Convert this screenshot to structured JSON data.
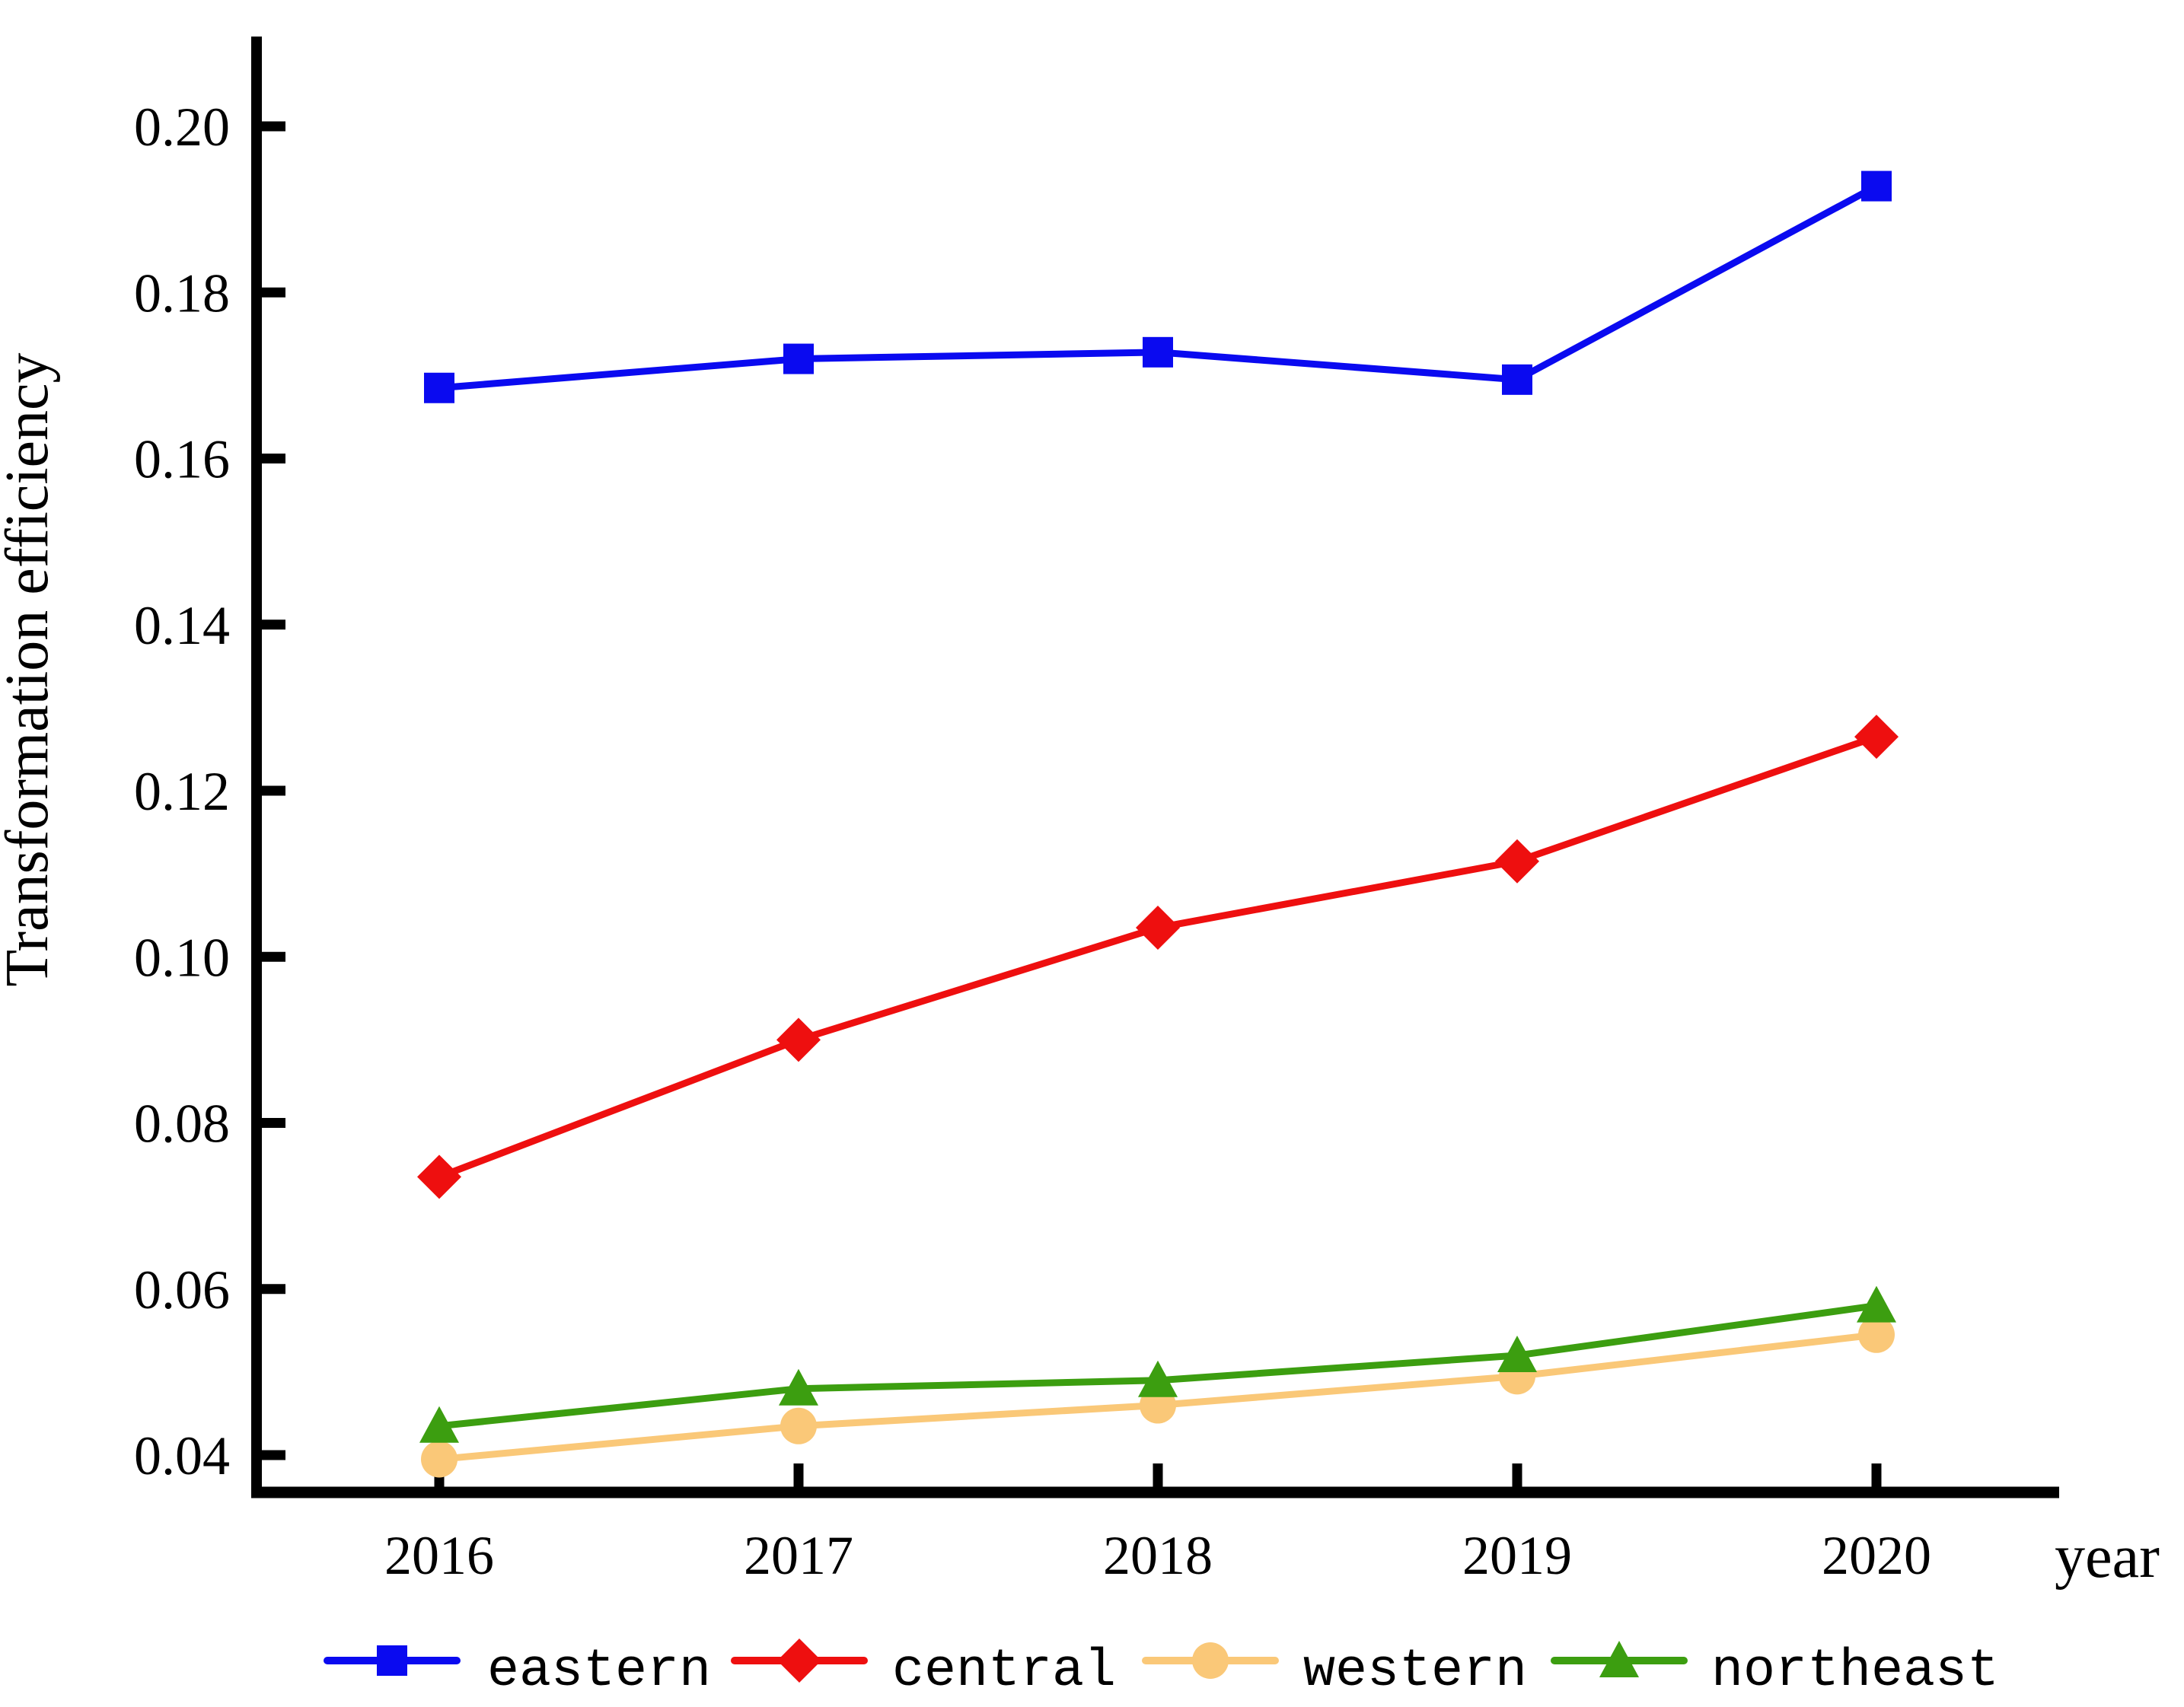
{
  "chart_data": {
    "type": "line",
    "title": "",
    "xlabel": "year",
    "ylabel": "Transformation efficiency",
    "categories": [
      "2016",
      "2017",
      "2018",
      "2019",
      "2020"
    ],
    "x_numeric": [
      2016,
      2017,
      2018,
      2019,
      2020
    ],
    "yticks": [
      0.04,
      0.06,
      0.08,
      0.1,
      0.12,
      0.14,
      0.16,
      0.18,
      0.2
    ],
    "ylim": [
      0.035,
      0.211
    ],
    "grid": false,
    "legend_position": "bottom",
    "axis_color": "#000000",
    "series": [
      {
        "name": "eastern",
        "color": "#0a0af0",
        "marker": "square",
        "values": [
          0.1685,
          0.172,
          0.1728,
          0.1695,
          0.1928
        ]
      },
      {
        "name": "central",
        "color": "#ee0f0f",
        "marker": "diamond",
        "values": [
          0.0735,
          0.09,
          0.1035,
          0.1115,
          0.1265
        ]
      },
      {
        "name": "western",
        "color": "#fac878",
        "marker": "circle",
        "values": [
          0.0395,
          0.0435,
          0.046,
          0.0495,
          0.0545
        ]
      },
      {
        "name": "northeast",
        "color": "#3c9e10",
        "marker": "triangle",
        "values": [
          0.0435,
          0.048,
          0.049,
          0.052,
          0.058
        ]
      }
    ]
  }
}
